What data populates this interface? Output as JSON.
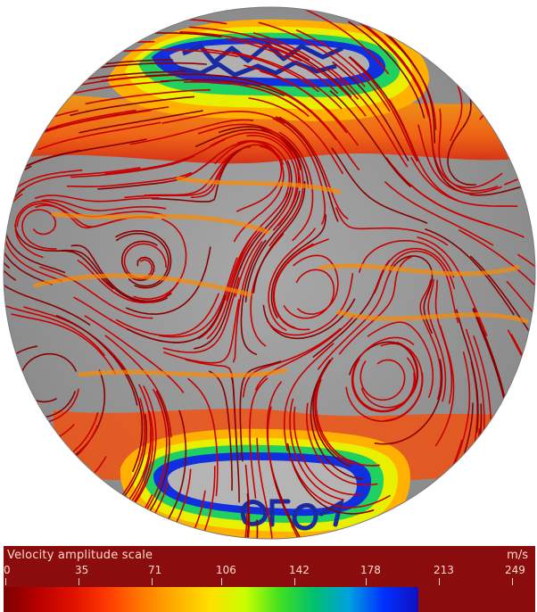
{
  "figure": {
    "subject": "velocity-streamline-map-on-sphere"
  },
  "colorbar": {
    "title": "Velocity amplitude scale",
    "unit": "m/s",
    "ticks": [
      "0",
      "35",
      "71",
      "106",
      "142",
      "178",
      "213",
      "249"
    ],
    "colors": [
      "#7a0000",
      "#b80000",
      "#e01000",
      "#ff3a00",
      "#ff7a00",
      "#ffb000",
      "#ffe000",
      "#c8ff00",
      "#40e020",
      "#00c070",
      "#00a0e0",
      "#0030ff",
      "#1010c0"
    ],
    "filled_fraction": 0.78
  },
  "palette": {
    "sphere_fill": "#9a9a9a",
    "streamline": "#c80000",
    "panel": "#8b0c0c",
    "text": "#ffdad0"
  }
}
